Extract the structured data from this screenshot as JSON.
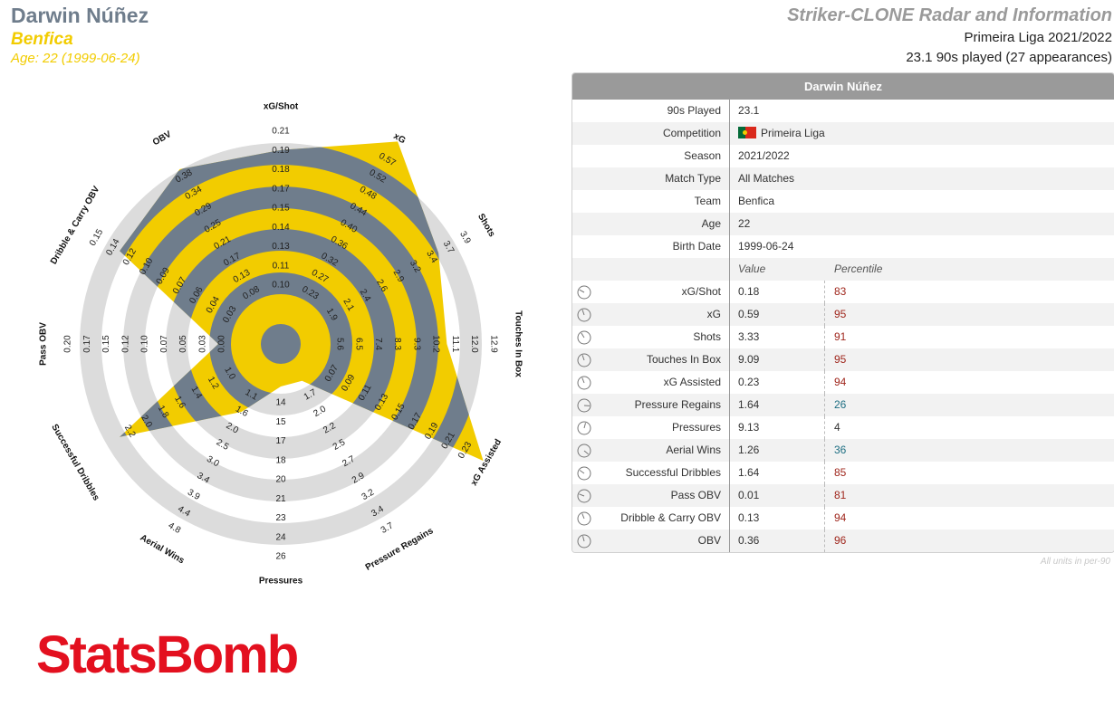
{
  "header": {
    "player_name": "Darwin Núñez",
    "team": "Benfica",
    "age": "Age: 22 (1999-06-24)",
    "title": "Striker-CLONE Radar and Information",
    "competition_season": "Primeira Liga 2021/2022",
    "minutes_info": "23.1 90s played (27 appearances)"
  },
  "colors": {
    "player_fill": "#f2cc00",
    "average_fill": "#6f7d8c",
    "ring": "#dcdcdc",
    "percentile_high": "#a0281e",
    "percentile_mid": "#1f6f83",
    "percentile_low": "#333333"
  },
  "chart_data": {
    "type": "radar",
    "metrics": [
      {
        "label": "xG/Shot",
        "ticks": [
          "0.10",
          "0.11",
          "0.13",
          "0.14",
          "0.15",
          "0.17",
          "0.18",
          "0.19",
          "0.21"
        ],
        "value": 0.18,
        "percentile": 83
      },
      {
        "label": "xG",
        "ticks": [
          "0.23",
          "0.27",
          "0.32",
          "0.36",
          "0.40",
          "0.44",
          "0.48",
          "0.52",
          "0.57"
        ],
        "value": 0.59,
        "percentile": 95
      },
      {
        "label": "Shots",
        "ticks": [
          "1.9",
          "2.1",
          "2.4",
          "2.6",
          "2.9",
          "3.2",
          "3.4",
          "3.7",
          "3.9"
        ],
        "value": 3.33,
        "percentile": 91
      },
      {
        "label": "Touches In Box",
        "ticks": [
          "5.6",
          "6.5",
          "7.4",
          "8.3",
          "9.3",
          "10.2",
          "11.1",
          "12.0",
          "12.9"
        ],
        "value": 9.09,
        "percentile": 95
      },
      {
        "label": "xG Assisted",
        "ticks": [
          "0.07",
          "0.09",
          "0.11",
          "0.13",
          "0.15",
          "0.17",
          "0.19",
          "0.21",
          "0.23"
        ],
        "value": 0.23,
        "percentile": 94
      },
      {
        "label": "Pressure Regains",
        "ticks": [
          "1.7",
          "2.0",
          "2.2",
          "2.5",
          "2.7",
          "2.9",
          "3.2",
          "3.4",
          "3.7"
        ],
        "value": 1.64,
        "percentile": 26
      },
      {
        "label": "Pressures",
        "ticks": [
          "14",
          "15",
          "17",
          "18",
          "20",
          "21",
          "23",
          "24",
          "26"
        ],
        "value": 9.13,
        "percentile": 4
      },
      {
        "label": "Aerial Wins",
        "ticks": [
          "1.1",
          "1.6",
          "2.0",
          "2.5",
          "3.0",
          "3.4",
          "3.9",
          "4.4",
          "4.8"
        ],
        "value": 1.26,
        "percentile": 36
      },
      {
        "label": "Successful Dribbles",
        "ticks": [
          "1.0",
          "1.2",
          "1.4",
          "1.6",
          "1.8",
          "2.0",
          "2.2"
        ],
        "value": 1.64,
        "percentile": 85
      },
      {
        "label": "Pass OBV",
        "ticks": [
          "0.00",
          "0.03",
          "0.05",
          "0.07",
          "0.10",
          "0.12",
          "0.15",
          "0.17",
          "0.20"
        ],
        "value": 0.01,
        "percentile": 81
      },
      {
        "label": "Dribble & Carry OBV",
        "ticks": [
          "0.03",
          "0.04",
          "0.06",
          "0.07",
          "0.09",
          "0.10",
          "0.12",
          "0.14",
          "0.15"
        ],
        "value": 0.13,
        "percentile": 94
      },
      {
        "label": "OBV",
        "ticks": [
          "0.08",
          "0.13",
          "0.17",
          "0.21",
          "0.25",
          "0.29",
          "0.34",
          "0.38"
        ],
        "value": 0.36,
        "percentile": 96
      }
    ],
    "player_radius": [
      0.86,
      1.06,
      0.8,
      0.72,
      1.06,
      0.1,
      0.1,
      0.28,
      0.82,
      0.2,
      0.82,
      0.9
    ],
    "average_radius": [
      0.78,
      0.98,
      0.73,
      0.66,
      0.55,
      0.45,
      0.14,
      0.5,
      0.5,
      0.42,
      0.72,
      0.82
    ]
  },
  "table": {
    "title": "Darwin Núñez",
    "info_rows": [
      {
        "label": "90s Played",
        "value": "23.1"
      },
      {
        "label": "Competition",
        "value": "Primeira Liga",
        "flag": true
      },
      {
        "label": "Season",
        "value": "2021/2022"
      },
      {
        "label": "Match Type",
        "value": "All Matches"
      },
      {
        "label": "Team",
        "value": "Benfica"
      },
      {
        "label": "Age",
        "value": "22"
      },
      {
        "label": "Birth Date",
        "value": "1999-06-24"
      }
    ],
    "col_value": "Value",
    "col_percentile": "Percentile",
    "stat_rows": [
      {
        "label": "xG/Shot",
        "value": "0.18",
        "percentile": "83",
        "tier": "high"
      },
      {
        "label": "xG",
        "value": "0.59",
        "percentile": "95",
        "tier": "high"
      },
      {
        "label": "Shots",
        "value": "3.33",
        "percentile": "91",
        "tier": "high"
      },
      {
        "label": "Touches In Box",
        "value": "9.09",
        "percentile": "95",
        "tier": "high"
      },
      {
        "label": "xG Assisted",
        "value": "0.23",
        "percentile": "94",
        "tier": "high"
      },
      {
        "label": "Pressure Regains",
        "value": "1.64",
        "percentile": "26",
        "tier": "mid"
      },
      {
        "label": "Pressures",
        "value": "9.13",
        "percentile": "4",
        "tier": "low"
      },
      {
        "label": "Aerial Wins",
        "value": "1.26",
        "percentile": "36",
        "tier": "mid"
      },
      {
        "label": "Successful Dribbles",
        "value": "1.64",
        "percentile": "85",
        "tier": "high"
      },
      {
        "label": "Pass OBV",
        "value": "0.01",
        "percentile": "81",
        "tier": "high"
      },
      {
        "label": "Dribble & Carry OBV",
        "value": "0.13",
        "percentile": "94",
        "tier": "high"
      },
      {
        "label": "OBV",
        "value": "0.36",
        "percentile": "96",
        "tier": "high"
      }
    ],
    "footnote": "All units in per-90"
  },
  "logo_text": "StatsBomb"
}
